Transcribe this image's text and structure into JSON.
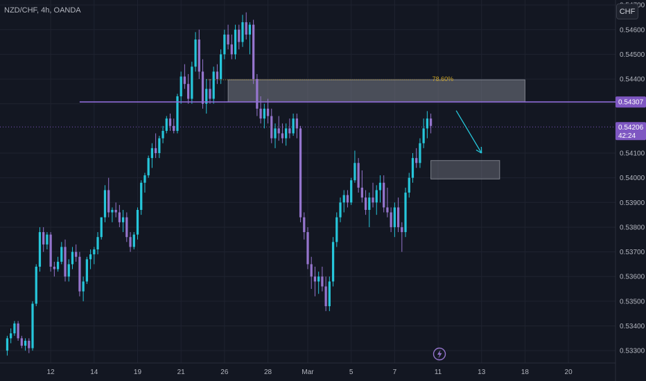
{
  "header": {
    "symbol": "NZD/CHF, 4h, OANDA",
    "currency_button": "CHF"
  },
  "colors": {
    "up": "#26c6da",
    "down": "#9575cd",
    "level_line": "#8e6bd8",
    "zone_fill": "#787b86",
    "arrow": "#26c6da",
    "price_tag": "#7e57c2",
    "fib_text": "#c9a227"
  },
  "chart_data": {
    "type": "candlestick",
    "y_axis": {
      "ticks": [
        "0.54700",
        "0.54600",
        "0.54500",
        "0.54400",
        "0.54300",
        "0.54100",
        "0.54000",
        "0.53900",
        "0.53800",
        "0.53700",
        "0.53600",
        "0.53500",
        "0.53400",
        "0.53300"
      ],
      "range": [
        0.5325,
        0.5472
      ]
    },
    "x_axis": {
      "ticks": [
        {
          "label": "12",
          "i": 12
        },
        {
          "label": "14",
          "i": 24
        },
        {
          "label": "19",
          "i": 36
        },
        {
          "label": "21",
          "i": 48
        },
        {
          "label": "26",
          "i": 60
        },
        {
          "label": "28",
          "i": 72
        },
        {
          "label": "Mar",
          "i": 83
        },
        {
          "label": "5",
          "i": 95
        },
        {
          "label": "7",
          "i": 107
        },
        {
          "label": "11",
          "i": 119
        },
        {
          "label": "13",
          "i": 131
        },
        {
          "label": "18",
          "i": 143
        },
        {
          "label": "20",
          "i": 155
        }
      ],
      "index_range": [
        -2,
        168
      ]
    },
    "candles": [
      [
        0.533,
        0.5336,
        0.5328,
        0.5335
      ],
      [
        0.5335,
        0.5339,
        0.5333,
        0.5337
      ],
      [
        0.5337,
        0.5342,
        0.5336,
        0.5341
      ],
      [
        0.5341,
        0.5342,
        0.5334,
        0.5335
      ],
      [
        0.5335,
        0.5336,
        0.5331,
        0.5332
      ],
      [
        0.5332,
        0.5335,
        0.533,
        0.5334
      ],
      [
        0.5334,
        0.5335,
        0.5329,
        0.5331
      ],
      [
        0.5331,
        0.535,
        0.533,
        0.5349
      ],
      [
        0.5349,
        0.5365,
        0.5348,
        0.5364
      ],
      [
        0.5364,
        0.538,
        0.5362,
        0.5378
      ],
      [
        0.5378,
        0.538,
        0.537,
        0.5373
      ],
      [
        0.5373,
        0.5378,
        0.5371,
        0.5377
      ],
      [
        0.5377,
        0.5378,
        0.5362,
        0.5364
      ],
      [
        0.5364,
        0.5366,
        0.536,
        0.5363
      ],
      [
        0.5363,
        0.5368,
        0.5362,
        0.5366
      ],
      [
        0.5366,
        0.5374,
        0.5365,
        0.5372
      ],
      [
        0.5372,
        0.5375,
        0.5358,
        0.536
      ],
      [
        0.536,
        0.5367,
        0.5358,
        0.5365
      ],
      [
        0.5365,
        0.5372,
        0.5363,
        0.537
      ],
      [
        0.537,
        0.5373,
        0.5366,
        0.5368
      ],
      [
        0.5368,
        0.537,
        0.5352,
        0.5354
      ],
      [
        0.5354,
        0.536,
        0.535,
        0.5358
      ],
      [
        0.5358,
        0.5368,
        0.5357,
        0.5367
      ],
      [
        0.5367,
        0.5371,
        0.5363,
        0.5369
      ],
      [
        0.5369,
        0.5372,
        0.5365,
        0.5371
      ],
      [
        0.5371,
        0.5378,
        0.5369,
        0.5376
      ],
      [
        0.5376,
        0.5384,
        0.5375,
        0.5384
      ],
      [
        0.5384,
        0.5397,
        0.5382,
        0.5395
      ],
      [
        0.5395,
        0.54,
        0.5384,
        0.5386
      ],
      [
        0.5386,
        0.5388,
        0.5382,
        0.5387
      ],
      [
        0.5387,
        0.539,
        0.5384,
        0.5386
      ],
      [
        0.5386,
        0.5389,
        0.538,
        0.5382
      ],
      [
        0.5382,
        0.5387,
        0.5378,
        0.5384
      ],
      [
        0.5384,
        0.5386,
        0.5374,
        0.5376
      ],
      [
        0.5376,
        0.5378,
        0.537,
        0.5372
      ],
      [
        0.5372,
        0.5378,
        0.5371,
        0.5377
      ],
      [
        0.5377,
        0.5388,
        0.5375,
        0.5387
      ],
      [
        0.5387,
        0.5399,
        0.5385,
        0.5398
      ],
      [
        0.5398,
        0.5402,
        0.5394,
        0.5401
      ],
      [
        0.5401,
        0.5409,
        0.54,
        0.5408
      ],
      [
        0.5408,
        0.5414,
        0.5404,
        0.5412
      ],
      [
        0.5412,
        0.5418,
        0.5408,
        0.541
      ],
      [
        0.541,
        0.5417,
        0.5408,
        0.5416
      ],
      [
        0.5416,
        0.5421,
        0.5414,
        0.5419
      ],
      [
        0.5419,
        0.5425,
        0.5418,
        0.5424
      ],
      [
        0.5424,
        0.5426,
        0.5419,
        0.5421
      ],
      [
        0.5421,
        0.5424,
        0.5418,
        0.5419
      ],
      [
        0.5419,
        0.5434,
        0.5418,
        0.5433
      ],
      [
        0.5433,
        0.5443,
        0.543,
        0.5441
      ],
      [
        0.5441,
        0.5446,
        0.5436,
        0.5438
      ],
      [
        0.5438,
        0.5442,
        0.543,
        0.5432
      ],
      [
        0.5432,
        0.5447,
        0.543,
        0.5445
      ],
      [
        0.5445,
        0.5459,
        0.5443,
        0.5456
      ],
      [
        0.5456,
        0.546,
        0.544,
        0.5443
      ],
      [
        0.5443,
        0.5448,
        0.5428,
        0.543
      ],
      [
        0.543,
        0.544,
        0.5426,
        0.5436
      ],
      [
        0.5436,
        0.544,
        0.543,
        0.5432
      ],
      [
        0.5432,
        0.5445,
        0.543,
        0.5443
      ],
      [
        0.5443,
        0.5446,
        0.5438,
        0.544
      ],
      [
        0.544,
        0.5452,
        0.5438,
        0.545
      ],
      [
        0.545,
        0.546,
        0.5448,
        0.5458
      ],
      [
        0.5458,
        0.5462,
        0.5452,
        0.5454
      ],
      [
        0.5454,
        0.5458,
        0.5448,
        0.545
      ],
      [
        0.545,
        0.5462,
        0.5448,
        0.546
      ],
      [
        0.546,
        0.5462,
        0.5452,
        0.5455
      ],
      [
        0.5455,
        0.5466,
        0.5453,
        0.5463
      ],
      [
        0.5463,
        0.5467,
        0.5456,
        0.5458
      ],
      [
        0.5458,
        0.5463,
        0.545,
        0.5462
      ],
      [
        0.5462,
        0.5464,
        0.5438,
        0.544
      ],
      [
        0.544,
        0.5442,
        0.5425,
        0.5428
      ],
      [
        0.5428,
        0.5433,
        0.5422,
        0.5424
      ],
      [
        0.5424,
        0.543,
        0.542,
        0.5428
      ],
      [
        0.5428,
        0.5432,
        0.5422,
        0.5425
      ],
      [
        0.5425,
        0.5428,
        0.5414,
        0.5416
      ],
      [
        0.5416,
        0.5422,
        0.5412,
        0.542
      ],
      [
        0.542,
        0.5425,
        0.5415,
        0.5418
      ],
      [
        0.5418,
        0.5422,
        0.5414,
        0.5416
      ],
      [
        0.5416,
        0.5422,
        0.5413,
        0.542
      ],
      [
        0.542,
        0.5424,
        0.5416,
        0.5418
      ],
      [
        0.5418,
        0.5426,
        0.5417,
        0.5424
      ],
      [
        0.5424,
        0.5426,
        0.5416,
        0.542
      ],
      [
        0.542,
        0.5421,
        0.5382,
        0.5384
      ],
      [
        0.5384,
        0.5386,
        0.5375,
        0.5378
      ],
      [
        0.5378,
        0.538,
        0.5363,
        0.5365
      ],
      [
        0.5365,
        0.5368,
        0.5355,
        0.536
      ],
      [
        0.536,
        0.5364,
        0.5352,
        0.5358
      ],
      [
        0.5358,
        0.5362,
        0.5353,
        0.536
      ],
      [
        0.536,
        0.5364,
        0.5354,
        0.5356
      ],
      [
        0.5356,
        0.536,
        0.5346,
        0.5348
      ],
      [
        0.5348,
        0.536,
        0.5346,
        0.5358
      ],
      [
        0.5358,
        0.5376,
        0.5356,
        0.5374
      ],
      [
        0.5374,
        0.5386,
        0.5372,
        0.5384
      ],
      [
        0.5384,
        0.5392,
        0.5382,
        0.539
      ],
      [
        0.539,
        0.5395,
        0.5386,
        0.5393
      ],
      [
        0.5393,
        0.5395,
        0.5388,
        0.539
      ],
      [
        0.539,
        0.54,
        0.5389,
        0.5399
      ],
      [
        0.5399,
        0.5411,
        0.5398,
        0.5406
      ],
      [
        0.5406,
        0.5408,
        0.5394,
        0.5396
      ],
      [
        0.5396,
        0.5403,
        0.539,
        0.5392
      ],
      [
        0.5392,
        0.5395,
        0.5385,
        0.5387
      ],
      [
        0.5387,
        0.5394,
        0.538,
        0.5392
      ],
      [
        0.5392,
        0.5398,
        0.5388,
        0.539
      ],
      [
        0.539,
        0.5397,
        0.5385,
        0.5395
      ],
      [
        0.5395,
        0.5401,
        0.539,
        0.5398
      ],
      [
        0.5398,
        0.5401,
        0.5386,
        0.5388
      ],
      [
        0.5388,
        0.5396,
        0.5384,
        0.5386
      ],
      [
        0.5386,
        0.5388,
        0.5378,
        0.538
      ],
      [
        0.538,
        0.539,
        0.5376,
        0.5388
      ],
      [
        0.5388,
        0.5392,
        0.5378,
        0.538
      ],
      [
        0.538,
        0.5382,
        0.537,
        0.5378
      ],
      [
        0.5378,
        0.5396,
        0.5376,
        0.5394
      ],
      [
        0.5394,
        0.5402,
        0.5392,
        0.54
      ],
      [
        0.54,
        0.541,
        0.5398,
        0.5408
      ],
      [
        0.5408,
        0.5412,
        0.5404,
        0.5406
      ],
      [
        0.5406,
        0.5416,
        0.5404,
        0.5414
      ],
      [
        0.5414,
        0.5424,
        0.5412,
        0.542
      ],
      [
        0.542,
        0.5427,
        0.5416,
        0.5424
      ],
      [
        0.5424,
        0.5426,
        0.5418,
        0.5421
      ]
    ],
    "price_level": 0.54307,
    "price_level_label": "0.54307",
    "current_price": 0.54206,
    "current_price_label": "0.54206",
    "countdown": "42:24",
    "supply_zone": {
      "x_from": 61,
      "x_to": 143,
      "y_low": 0.54307,
      "y_high": 0.54397
    },
    "fib_line": {
      "x_from": 55,
      "x_to": 117,
      "y": 0.54397
    },
    "fib_label": "78.60%",
    "target_zone": {
      "x_from": 117,
      "x_to": 136,
      "y_low": 0.53995,
      "y_high": 0.5407
    },
    "arrow": {
      "x_from": 124,
      "y_from": 0.54272,
      "x_to": 131,
      "y_to": 0.541
    }
  }
}
